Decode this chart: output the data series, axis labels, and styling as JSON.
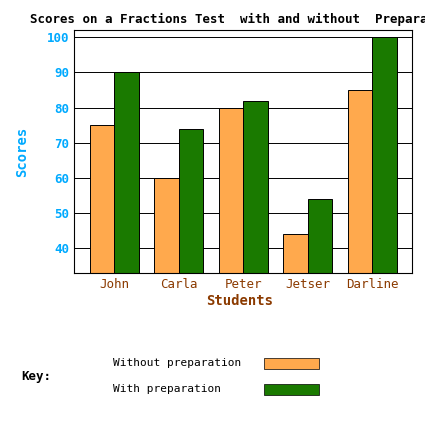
{
  "title": "Scores on a Fractions Test  with and without  Preparation",
  "xlabel": "Students",
  "ylabel": "Scores",
  "categories": [
    "John",
    "Carla",
    "Peter",
    "Jetser",
    "Darline"
  ],
  "without_prep": [
    75,
    60,
    80,
    44,
    85
  ],
  "with_prep": [
    90,
    74,
    82,
    54,
    100
  ],
  "bar_color_without": "#FFA94D",
  "bar_color_with": "#1A7A00",
  "title_color": "#000000",
  "axis_tick_color": "#00AAFF",
  "xlabel_color": "#8B3A00",
  "xticklabel_color": "#8B3A00",
  "ylabel_color": "#00AAFF",
  "key_label_color": "#000000",
  "key_title_color": "#000000",
  "ylim": [
    33,
    102
  ],
  "yticks": [
    40,
    50,
    60,
    70,
    80,
    90,
    100
  ],
  "bar_width": 0.38,
  "figsize": [
    4.25,
    4.3
  ],
  "dpi": 100
}
